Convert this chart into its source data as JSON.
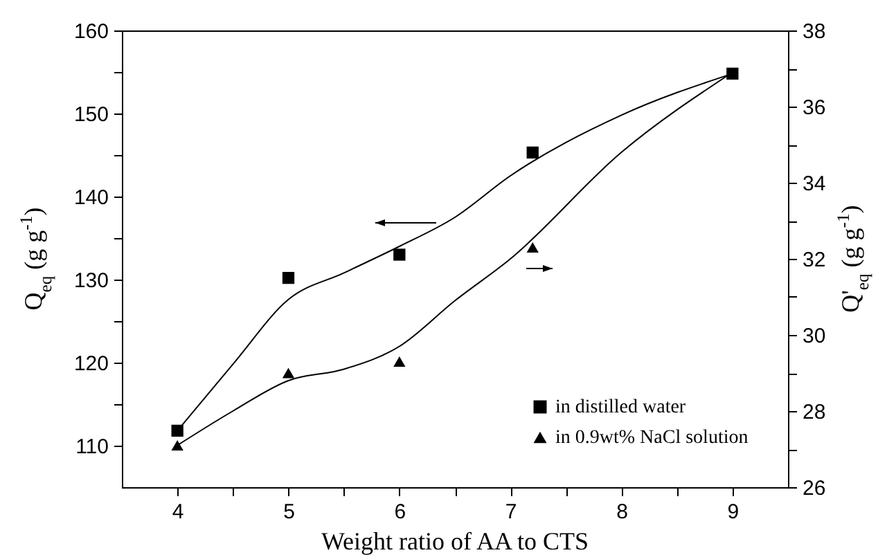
{
  "chart_data": {
    "type": "scatter",
    "xlabel": "Weight ratio of AA to CTS",
    "ylabel": "Q$_{eq}$ (g g$^{-1}$)",
    "y2label": "Q'$_{eq}$ (g g$^{-1}$)",
    "xlim": [
      3.5,
      9.5
    ],
    "xticks": [
      4,
      {
        "value": 4.5,
        "label": null
      },
      5,
      {
        "value": 5.5,
        "label": null
      },
      6,
      {
        "value": 6.5,
        "label": null
      },
      7,
      {
        "value": 7.5,
        "label": null
      },
      8,
      {
        "value": 8.5,
        "label": null
      },
      9
    ],
    "ylim": [
      105,
      160
    ],
    "yticks": [
      110,
      {
        "value": 115,
        "label": null
      },
      120,
      {
        "value": 125,
        "label": null
      },
      130,
      {
        "value": 135,
        "label": null
      },
      140,
      {
        "value": 145,
        "label": null
      },
      150,
      {
        "value": 155,
        "label": null
      },
      160
    ],
    "y2lim": [
      26,
      38
    ],
    "y2ticks": [
      26,
      {
        "value": 27,
        "label": null
      },
      28,
      {
        "value": 29,
        "label": null
      },
      30,
      {
        "value": 31,
        "label": null
      },
      32,
      {
        "value": 33,
        "label": null
      },
      34,
      {
        "value": 35,
        "label": null
      },
      36,
      {
        "value": 37,
        "label": null
      },
      38
    ],
    "grid": false,
    "legend": "bottom right",
    "series": [
      {
        "name": "in distilled water",
        "marker": "square",
        "color": "#000000",
        "x": [
          4,
          5,
          6,
          7.2,
          9
        ],
        "values": [
          111.8,
          130.2,
          133.0,
          145.3,
          154.8
        ]
      },
      {
        "name": "in 0.9wt% NaCl solution",
        "marker": "triangle",
        "axis": "y2",
        "color": "#000000",
        "x": [
          4,
          5,
          6,
          7.2
        ],
        "values": [
          27.1,
          29.0,
          29.3,
          32.3
        ]
      },
      {
        "type": "line",
        "color": "#000000",
        "x": [
          4,
          4.5,
          5,
          5.5,
          6,
          6.5,
          7,
          8,
          9
        ],
        "values": [
          111.8,
          119.8,
          127.6,
          130.8,
          134.0,
          137.5,
          142.5,
          149.8,
          154.8
        ]
      },
      {
        "type": "line",
        "axis": "y2",
        "color": "#000000",
        "x": [
          4,
          4.5,
          5,
          5.5,
          6,
          6.5,
          7,
          8,
          9
        ],
        "values": [
          27.1,
          28.0,
          28.8,
          29.1,
          29.7,
          30.9,
          32.0,
          34.8,
          36.9
        ]
      }
    ]
  }
}
